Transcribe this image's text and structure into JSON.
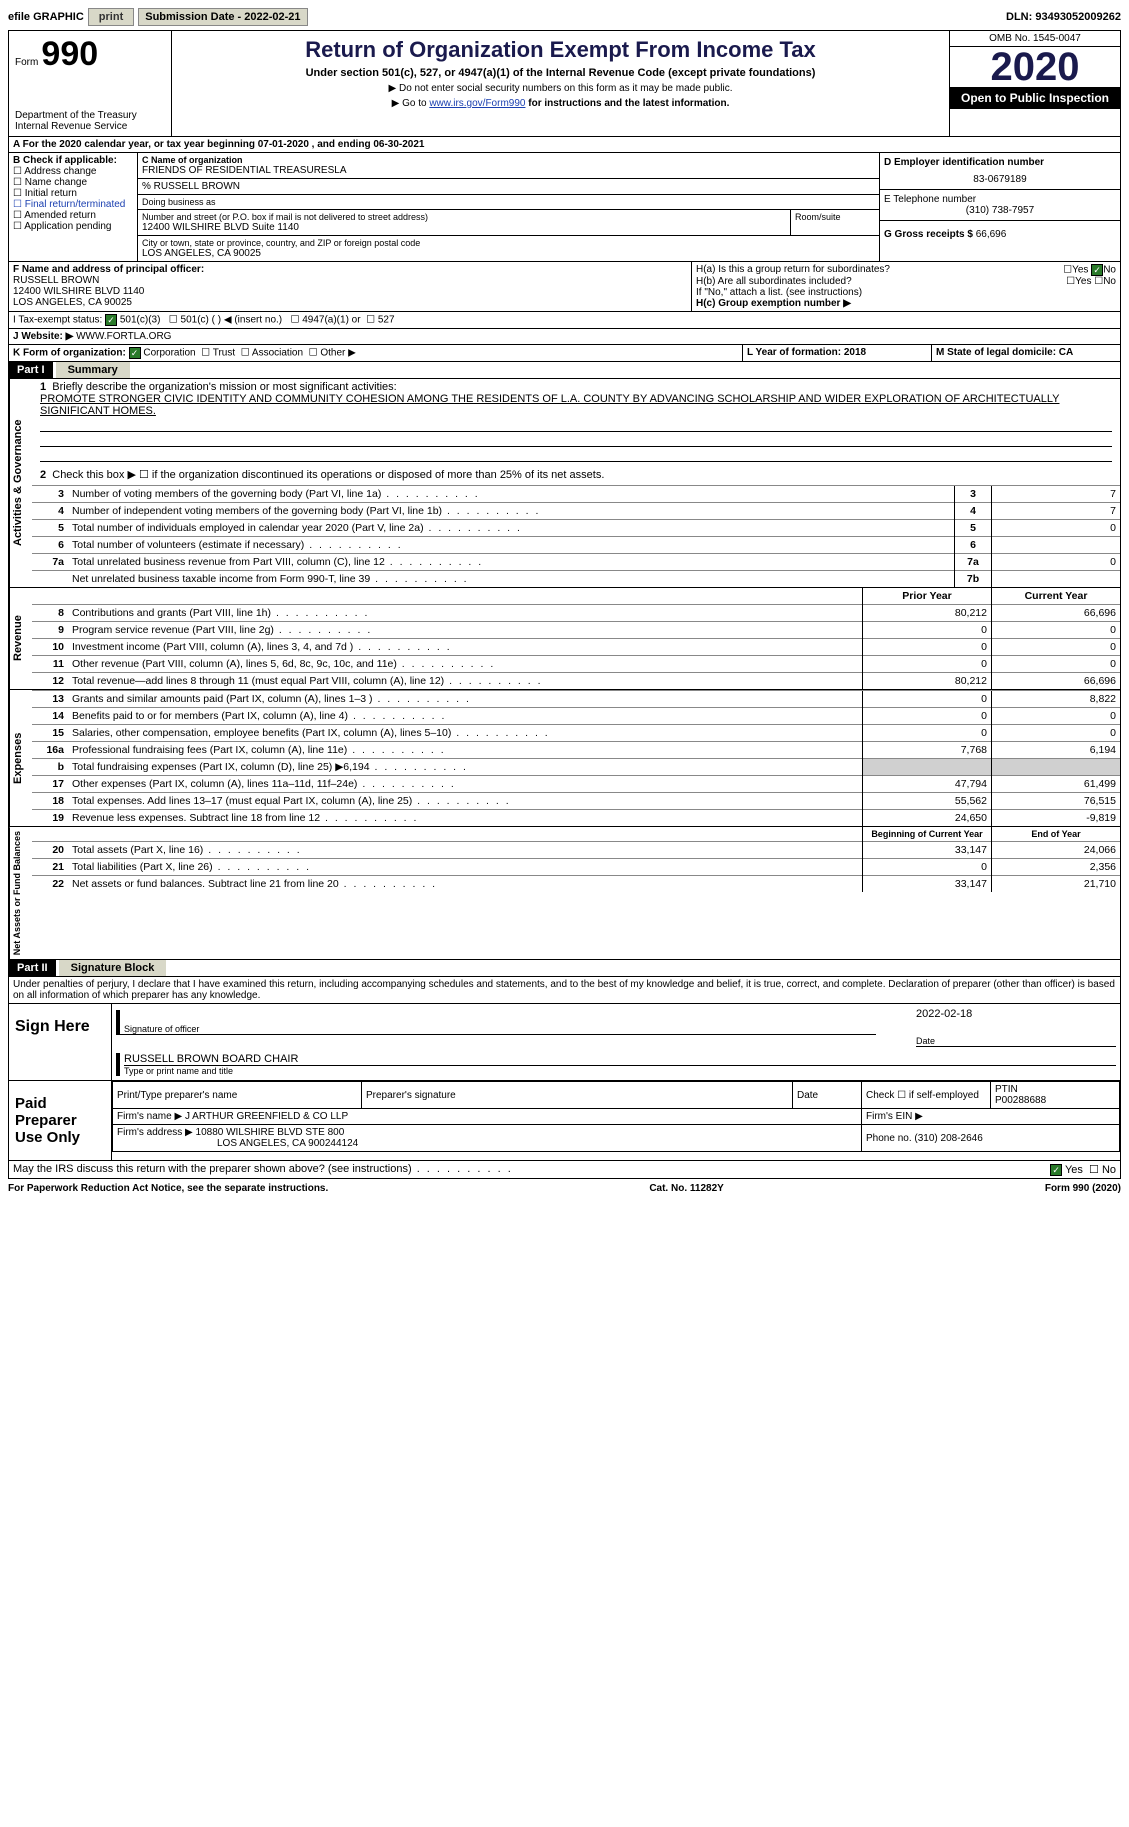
{
  "topbar": {
    "efile_label": "efile GRAPHIC",
    "print_btn": "print",
    "sub_date_label": "Submission Date - 2022-02-21",
    "dln_label": "DLN: 93493052009262"
  },
  "header": {
    "form_prefix": "Form",
    "form_number": "990",
    "dept": "Department of the Treasury\nInternal Revenue Service",
    "title": "Return of Organization Exempt From Income Tax",
    "subtitle": "Under section 501(c), 527, or 4947(a)(1) of the Internal Revenue Code (except private foundations)",
    "note1": "▶ Do not enter social security numbers on this form as it may be made public.",
    "note2_pre": "▶ Go to ",
    "note2_link": "www.irs.gov/Form990",
    "note2_post": " for instructions and the latest information.",
    "omb": "OMB No. 1545-0047",
    "year": "2020",
    "open_public": "Open to Public Inspection"
  },
  "period": {
    "line": "For the 2020 calendar year, or tax year beginning 07-01-2020   , and ending 06-30-2021"
  },
  "sectionB": {
    "label": "B Check if applicable:",
    "items": [
      "Address change",
      "Name change",
      "Initial return",
      "Final return/terminated",
      "Amended return",
      "Application pending"
    ]
  },
  "sectionC": {
    "name_label": "C Name of organization",
    "name": "FRIENDS OF RESIDENTIAL TREASURESLA",
    "careof": "% RUSSELL BROWN",
    "dba_label": "Doing business as",
    "addr_label": "Number and street (or P.O. box if mail is not delivered to street address)",
    "room_label": "Room/suite",
    "addr": "12400 WILSHIRE BLVD Suite 1140",
    "city_label": "City or town, state or province, country, and ZIP or foreign postal code",
    "city": "LOS ANGELES, CA  90025"
  },
  "sectionD": {
    "label": "D Employer identification number",
    "value": "83-0679189"
  },
  "sectionE": {
    "label": "E Telephone number",
    "value": "(310) 738-7957"
  },
  "sectionG": {
    "label": "G Gross receipts $",
    "value": "66,696"
  },
  "sectionF": {
    "label": "F  Name and address of principal officer:",
    "name": "RUSSELL BROWN",
    "addr1": "12400 WILSHIRE BLVD 1140",
    "addr2": "LOS ANGELES, CA  90025"
  },
  "sectionH": {
    "ha": "H(a)  Is this a group return for subordinates?",
    "hb": "H(b)  Are all subordinates included?",
    "hb_note": "If \"No,\" attach a list. (see instructions)",
    "hc": "H(c)  Group exemption number ▶",
    "yes": "Yes",
    "no": "No"
  },
  "sectionI": {
    "label": "I    Tax-exempt status:",
    "opt1": "501(c)(3)",
    "opt2": "501(c) (  ) ◀ (insert no.)",
    "opt3": "4947(a)(1) or",
    "opt4": "527"
  },
  "sectionJ": {
    "label": "J   Website: ▶",
    "value": "WWW.FORTLA.ORG"
  },
  "sectionK": {
    "label": "K Form of organization:",
    "opts": [
      "Corporation",
      "Trust",
      "Association",
      "Other ▶"
    ]
  },
  "sectionL": {
    "label": "L Year of formation: 2018"
  },
  "sectionM": {
    "label": "M State of legal domicile: CA"
  },
  "part1": {
    "label": "Part I",
    "title": "Summary",
    "side1": "Activities & Governance",
    "side2": "Revenue",
    "side3": "Expenses",
    "side4": "Net Assets or Fund Balances",
    "q1": "Briefly describe the organization's mission or most significant activities:",
    "mission": "PROMOTE STRONGER CIVIC IDENTITY AND COMMUNITY COHESION AMONG THE RESIDENTS OF L.A. COUNTY BY ADVANCING SCHOLARSHIP AND WIDER EXPLORATION OF ARCHITECTUALLY SIGNIFICANT HOMES.",
    "q2": "Check this box ▶ ☐  if the organization discontinued its operations or disposed of more than 25% of its net assets.",
    "rows_gov": [
      {
        "n": "3",
        "t": "Number of voting members of the governing body (Part VI, line 1a)",
        "box": "3",
        "v": "7"
      },
      {
        "n": "4",
        "t": "Number of independent voting members of the governing body (Part VI, line 1b)",
        "box": "4",
        "v": "7"
      },
      {
        "n": "5",
        "t": "Total number of individuals employed in calendar year 2020 (Part V, line 2a)",
        "box": "5",
        "v": "0"
      },
      {
        "n": "6",
        "t": "Total number of volunteers (estimate if necessary)",
        "box": "6",
        "v": ""
      },
      {
        "n": "7a",
        "t": "Total unrelated business revenue from Part VIII, column (C), line 12",
        "box": "7a",
        "v": "0"
      },
      {
        "n": "",
        "t": "Net unrelated business taxable income from Form 990-T, line 39",
        "box": "7b",
        "v": ""
      }
    ],
    "col_prior": "Prior Year",
    "col_current": "Current Year",
    "rows_rev": [
      {
        "n": "8",
        "t": "Contributions and grants (Part VIII, line 1h)",
        "p": "80,212",
        "c": "66,696"
      },
      {
        "n": "9",
        "t": "Program service revenue (Part VIII, line 2g)",
        "p": "0",
        "c": "0"
      },
      {
        "n": "10",
        "t": "Investment income (Part VIII, column (A), lines 3, 4, and 7d )",
        "p": "0",
        "c": "0"
      },
      {
        "n": "11",
        "t": "Other revenue (Part VIII, column (A), lines 5, 6d, 8c, 9c, 10c, and 11e)",
        "p": "0",
        "c": "0"
      },
      {
        "n": "12",
        "t": "Total revenue—add lines 8 through 11 (must equal Part VIII, column (A), line 12)",
        "p": "80,212",
        "c": "66,696"
      }
    ],
    "rows_exp": [
      {
        "n": "13",
        "t": "Grants and similar amounts paid (Part IX, column (A), lines 1–3 )",
        "p": "0",
        "c": "8,822"
      },
      {
        "n": "14",
        "t": "Benefits paid to or for members (Part IX, column (A), line 4)",
        "p": "0",
        "c": "0"
      },
      {
        "n": "15",
        "t": "Salaries, other compensation, employee benefits (Part IX, column (A), lines 5–10)",
        "p": "0",
        "c": "0"
      },
      {
        "n": "16a",
        "t": "Professional fundraising fees (Part IX, column (A), line 11e)",
        "p": "7,768",
        "c": "6,194"
      },
      {
        "n": "b",
        "t": "Total fundraising expenses (Part IX, column (D), line 25) ▶6,194",
        "p": "shaded",
        "c": "shaded"
      },
      {
        "n": "17",
        "t": "Other expenses (Part IX, column (A), lines 11a–11d, 11f–24e)",
        "p": "47,794",
        "c": "61,499"
      },
      {
        "n": "18",
        "t": "Total expenses. Add lines 13–17 (must equal Part IX, column (A), line 25)",
        "p": "55,562",
        "c": "76,515"
      },
      {
        "n": "19",
        "t": "Revenue less expenses. Subtract line 18 from line 12",
        "p": "24,650",
        "c": "-9,819"
      }
    ],
    "col_begin": "Beginning of Current Year",
    "col_end": "End of Year",
    "rows_net": [
      {
        "n": "20",
        "t": "Total assets (Part X, line 16)",
        "p": "33,147",
        "c": "24,066"
      },
      {
        "n": "21",
        "t": "Total liabilities (Part X, line 26)",
        "p": "0",
        "c": "2,356"
      },
      {
        "n": "22",
        "t": "Net assets or fund balances. Subtract line 21 from line 20",
        "p": "33,147",
        "c": "21,710"
      }
    ]
  },
  "part2": {
    "label": "Part II",
    "title": "Signature Block",
    "decl": "Under penalties of perjury, I declare that I have examined this return, including accompanying schedules and statements, and to the best of my knowledge and belief, it is true, correct, and complete. Declaration of preparer (other than officer) is based on all information of which preparer has any knowledge.",
    "sign_here": "Sign Here",
    "sig_officer": "Signature of officer",
    "sig_date": "Date",
    "sig_date_val": "2022-02-18",
    "officer_name": "RUSSELL BROWN  BOARD CHAIR",
    "type_name": "Type or print name and title",
    "paid_label": "Paid Preparer Use Only",
    "prep_name_label": "Print/Type preparer's name",
    "prep_sig_label": "Preparer's signature",
    "prep_date_label": "Date",
    "check_self": "Check ☐ if self-employed",
    "ptin_label": "PTIN",
    "ptin": "P00288688",
    "firm_name_label": "Firm's name    ▶",
    "firm_name": "J ARTHUR GREENFIELD & CO LLP",
    "firm_ein_label": "Firm's EIN ▶",
    "firm_addr_label": "Firm's address ▶",
    "firm_addr1": "10880 WILSHIRE BLVD STE 800",
    "firm_addr2": "LOS ANGELES, CA  900244124",
    "firm_phone_label": "Phone no.",
    "firm_phone": "(310) 208-2646",
    "discuss": "May the IRS discuss this return with the preparer shown above? (see instructions)"
  },
  "footer": {
    "pra": "For Paperwork Reduction Act Notice, see the separate instructions.",
    "cat": "Cat. No. 11282Y",
    "form": "Form 990 (2020)"
  }
}
